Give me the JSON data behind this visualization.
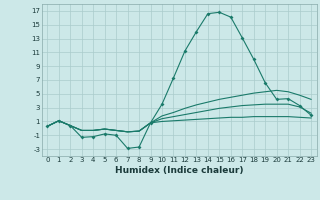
{
  "xlabel": "Humidex (Indice chaleur)",
  "bg_color": "#cce8e8",
  "grid_color": "#aacccc",
  "line_color": "#1a7a6a",
  "x_values": [
    0,
    1,
    2,
    3,
    4,
    5,
    6,
    7,
    8,
    9,
    10,
    11,
    12,
    13,
    14,
    15,
    16,
    17,
    18,
    19,
    20,
    21,
    22,
    23
  ],
  "line1_y": [
    0.3,
    1.1,
    0.4,
    -1.3,
    -1.2,
    -0.8,
    -1.0,
    -2.9,
    -2.7,
    0.8,
    3.5,
    7.3,
    11.2,
    14.0,
    16.6,
    16.8,
    16.1,
    13.1,
    10.0,
    6.6,
    4.2,
    4.3,
    3.3,
    1.9
  ],
  "line2_y": [
    0.3,
    1.1,
    0.4,
    -0.3,
    -0.3,
    -0.1,
    -0.3,
    -0.5,
    -0.4,
    0.8,
    1.8,
    2.3,
    2.9,
    3.4,
    3.8,
    4.2,
    4.5,
    4.8,
    5.1,
    5.3,
    5.5,
    5.3,
    4.8,
    4.2
  ],
  "line3_y": [
    0.3,
    1.1,
    0.4,
    -0.3,
    -0.3,
    -0.1,
    -0.3,
    -0.5,
    -0.4,
    0.8,
    1.4,
    1.7,
    2.0,
    2.3,
    2.6,
    2.9,
    3.1,
    3.3,
    3.4,
    3.5,
    3.5,
    3.5,
    3.1,
    2.2
  ],
  "line4_y": [
    0.3,
    1.1,
    0.4,
    -0.3,
    -0.3,
    -0.1,
    -0.3,
    -0.5,
    -0.4,
    0.8,
    1.0,
    1.1,
    1.2,
    1.3,
    1.4,
    1.5,
    1.6,
    1.6,
    1.7,
    1.7,
    1.7,
    1.7,
    1.6,
    1.5
  ],
  "ylim": [
    -4,
    18
  ],
  "xlim": [
    -0.5,
    23.5
  ],
  "yticks": [
    -3,
    -1,
    1,
    3,
    5,
    7,
    9,
    11,
    13,
    15,
    17
  ],
  "xticks": [
    0,
    1,
    2,
    3,
    4,
    5,
    6,
    7,
    8,
    9,
    10,
    11,
    12,
    13,
    14,
    15,
    16,
    17,
    18,
    19,
    20,
    21,
    22,
    23
  ],
  "tick_fontsize": 5,
  "xlabel_fontsize": 6.5,
  "line_width": 0.8,
  "marker_size": 2.0
}
